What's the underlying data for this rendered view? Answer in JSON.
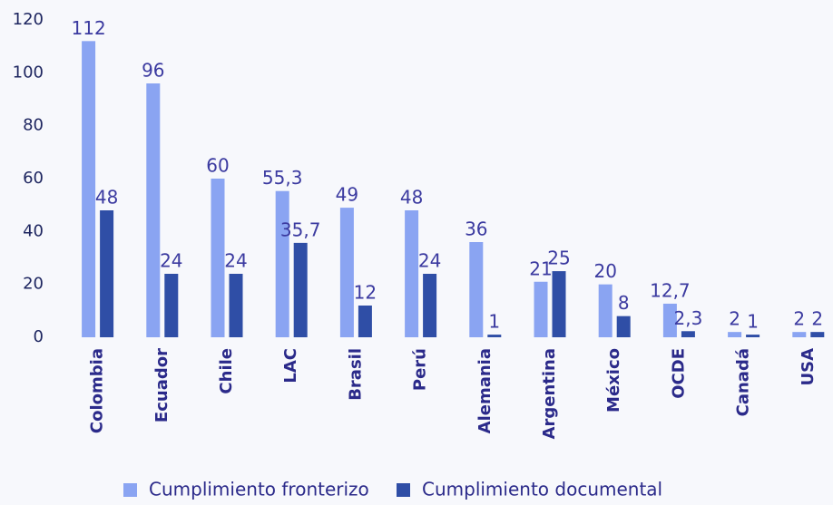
{
  "chart_data": {
    "type": "bar",
    "categories": [
      "Colombia",
      "Ecuador",
      "Chile",
      "LAC",
      "Brasil",
      "Perú",
      "Alemania",
      "Argentina",
      "México",
      "OCDE",
      "Canadá",
      "USA"
    ],
    "series": [
      {
        "name": "Cumplimiento fronterizo",
        "color": "#8aa4f2",
        "values": [
          112,
          96,
          60,
          55.3,
          49,
          48,
          36,
          21,
          20,
          12.7,
          2,
          2
        ],
        "value_labels": [
          "112",
          "96",
          "60",
          "55,3",
          "49",
          "48",
          "36",
          "21",
          "20",
          "12,7",
          "2",
          "2"
        ]
      },
      {
        "name": "Cumplimiento documental",
        "color": "#2f4ea6",
        "values": [
          48,
          24,
          24,
          35.7,
          12,
          24,
          1,
          25,
          8,
          2.3,
          1,
          2
        ],
        "value_labels": [
          "48",
          "24",
          "24",
          "35,7",
          "12",
          "24",
          "1",
          "25",
          "8",
          "2,3",
          "1",
          "2"
        ]
      }
    ],
    "ylim": [
      0,
      120
    ],
    "yticks": [
      0,
      20,
      40,
      60,
      80,
      100,
      120
    ],
    "legend": "bottom"
  }
}
